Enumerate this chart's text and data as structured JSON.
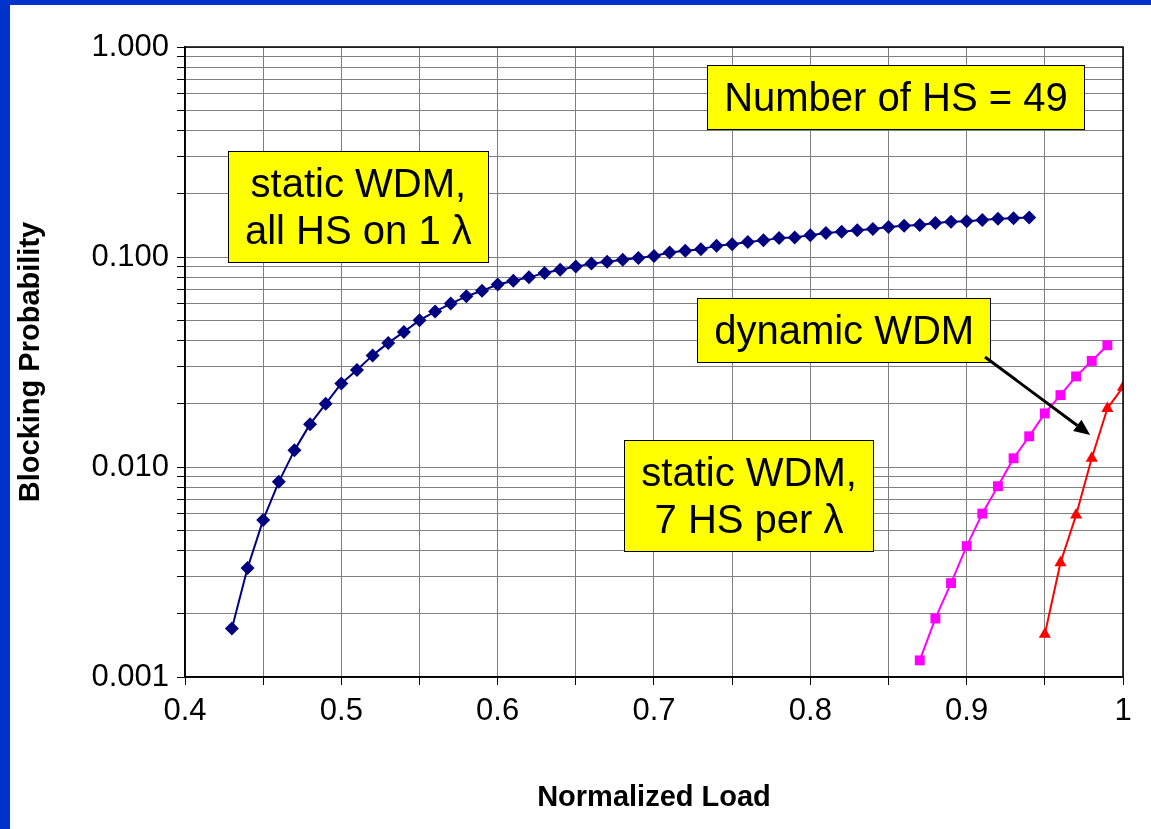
{
  "chart_data": {
    "type": "line",
    "xlabel": "Normalized Load",
    "ylabel": "Blocking Probability",
    "log": "y",
    "grid": true,
    "legend": false,
    "xlim": [
      0.4,
      1
    ],
    "xticks": [
      0.4,
      {
        "value": 0.45,
        "label": null
      },
      0.5,
      {
        "value": 0.55,
        "label": null
      },
      0.6,
      {
        "value": 0.65,
        "label": null
      },
      0.7,
      {
        "value": 0.75,
        "label": null
      },
      0.8,
      {
        "value": 0.85,
        "label": null
      },
      0.9,
      {
        "value": 0.95,
        "label": null
      },
      1
    ],
    "ylim": [
      0.001,
      1
    ],
    "yticks": [
      {
        "value": 0.001,
        "label": "0.001"
      },
      {
        "value": 0.002,
        "label": null
      },
      {
        "value": 0.003,
        "label": null
      },
      {
        "value": 0.004,
        "label": null
      },
      {
        "value": 0.005,
        "label": null
      },
      {
        "value": 0.006,
        "label": null
      },
      {
        "value": 0.007,
        "label": null
      },
      {
        "value": 0.008,
        "label": null
      },
      {
        "value": 0.009,
        "label": null
      },
      {
        "value": 0.01,
        "label": "0.010"
      },
      {
        "value": 0.02,
        "label": null
      },
      {
        "value": 0.03,
        "label": null
      },
      {
        "value": 0.04,
        "label": null
      },
      {
        "value": 0.05,
        "label": null
      },
      {
        "value": 0.06,
        "label": null
      },
      {
        "value": 0.07,
        "label": null
      },
      {
        "value": 0.08,
        "label": null
      },
      {
        "value": 0.09,
        "label": null
      },
      {
        "value": 0.1,
        "label": "0.100"
      },
      {
        "value": 0.2,
        "label": null
      },
      {
        "value": 0.3,
        "label": null
      },
      {
        "value": 0.4,
        "label": null
      },
      {
        "value": 0.5,
        "label": null
      },
      {
        "value": 0.6,
        "label": null
      },
      {
        "value": 0.7,
        "label": null
      },
      {
        "value": 0.8,
        "label": null
      },
      {
        "value": 0.9,
        "label": null
      },
      {
        "value": 1,
        "label": "1.000"
      }
    ],
    "series": [
      {
        "color": "#000080",
        "marker": "diamond",
        "x": [
          0.43,
          0.44,
          0.45,
          0.46,
          0.47,
          0.48,
          0.49,
          0.5,
          0.51,
          0.52,
          0.53,
          0.54,
          0.55,
          0.56,
          0.57,
          0.58,
          0.59,
          0.6,
          0.61,
          0.62,
          0.63,
          0.64,
          0.65,
          0.66,
          0.67,
          0.68,
          0.69,
          0.7,
          0.71,
          0.72,
          0.73,
          0.74,
          0.75,
          0.76,
          0.77,
          0.78,
          0.79,
          0.8,
          0.81,
          0.82,
          0.83,
          0.84,
          0.85,
          0.86,
          0.87,
          0.88,
          0.89,
          0.9,
          0.91,
          0.92,
          0.93,
          0.94
        ],
        "values": [
          0.0017,
          0.0033,
          0.0056,
          0.0085,
          0.012,
          0.016,
          0.02,
          0.025,
          0.029,
          0.034,
          0.039,
          0.044,
          0.05,
          0.055,
          0.06,
          0.065,
          0.069,
          0.074,
          0.077,
          0.08,
          0.084,
          0.087,
          0.09,
          0.093,
          0.095,
          0.097,
          0.099,
          0.101,
          0.105,
          0.107,
          0.109,
          0.113,
          0.115,
          0.118,
          0.12,
          0.123,
          0.124,
          0.127,
          0.13,
          0.132,
          0.134,
          0.136,
          0.139,
          0.141,
          0.142,
          0.145,
          0.147,
          0.148,
          0.15,
          0.152,
          0.153,
          0.154
        ]
      },
      {
        "color": "#ff00ff",
        "marker": "square",
        "x": [
          0.87,
          0.88,
          0.89,
          0.9,
          0.91,
          0.92,
          0.93,
          0.94,
          0.95,
          0.96,
          0.97,
          0.98,
          0.99
        ],
        "values": [
          0.0012,
          0.0019,
          0.0028,
          0.0042,
          0.006,
          0.0081,
          0.011,
          0.014,
          0.018,
          0.022,
          0.027,
          0.032,
          0.038
        ]
      },
      {
        "color": "#ff0000",
        "marker": "triangle",
        "x": [
          0.95,
          0.96,
          0.97,
          0.98,
          0.99,
          1.0
        ],
        "values": [
          0.0016,
          0.0035,
          0.0059,
          0.011,
          0.019,
          0.024
        ]
      }
    ],
    "annotations": [
      "Number of HS = 49",
      "static WDM,\nall HS on 1 λ",
      "dynamic WDM",
      "static WDM,\n7 HS per λ"
    ]
  }
}
